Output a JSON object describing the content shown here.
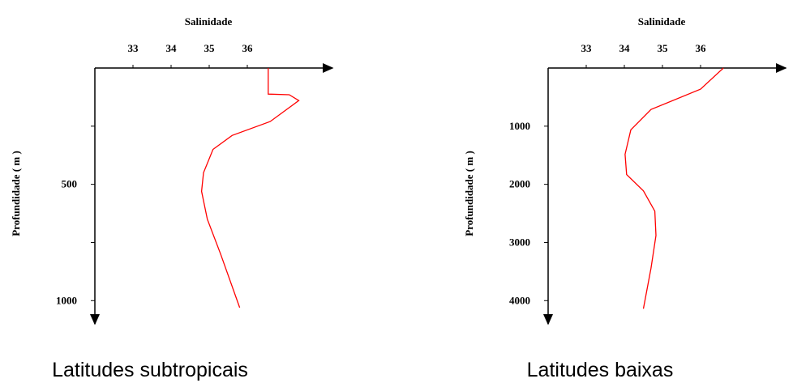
{
  "chart_data": [
    {
      "type": "line",
      "xlabel": "Salinidade",
      "ylabel": "Profundidade  ( m )",
      "caption": "Latitudes subtropicais",
      "xlim": [
        32,
        38.2
      ],
      "xticks": [
        33,
        34,
        35,
        36
      ],
      "ylim": [
        0,
        1100
      ],
      "yticks": [
        500,
        1000
      ],
      "yminor_ticks": [
        250,
        750
      ],
      "y_inverted": true,
      "series": [
        {
          "color": "#ff0000",
          "x": [
            36.55,
            36.55,
            37.1,
            37.35,
            36.6,
            35.6,
            35.1,
            34.85,
            34.8,
            34.95,
            35.3,
            35.8
          ],
          "values": [
            0,
            112,
            115,
            140,
            230,
            290,
            350,
            450,
            530,
            650,
            800,
            1030
          ]
        }
      ]
    },
    {
      "type": "line",
      "xlabel": "Salinidade",
      "ylabel": "Profundidade  ( m )",
      "caption": "Latitudes baixas",
      "xlim": [
        32,
        38.2
      ],
      "xticks": [
        33,
        34,
        35,
        36
      ],
      "ylim": [
        0,
        4400
      ],
      "yticks": [
        1000,
        2000,
        3000,
        4000
      ],
      "y_inverted": true,
      "series": [
        {
          "color": "#ff0000",
          "x": [
            36.6,
            36.0,
            34.7,
            34.17,
            34.02,
            34.06,
            34.5,
            34.8,
            34.83,
            34.7,
            34.5
          ],
          "values": [
            0,
            364,
            713,
            1063,
            1483,
            1832,
            2112,
            2462,
            2881,
            3441,
            4140
          ]
        }
      ]
    }
  ]
}
